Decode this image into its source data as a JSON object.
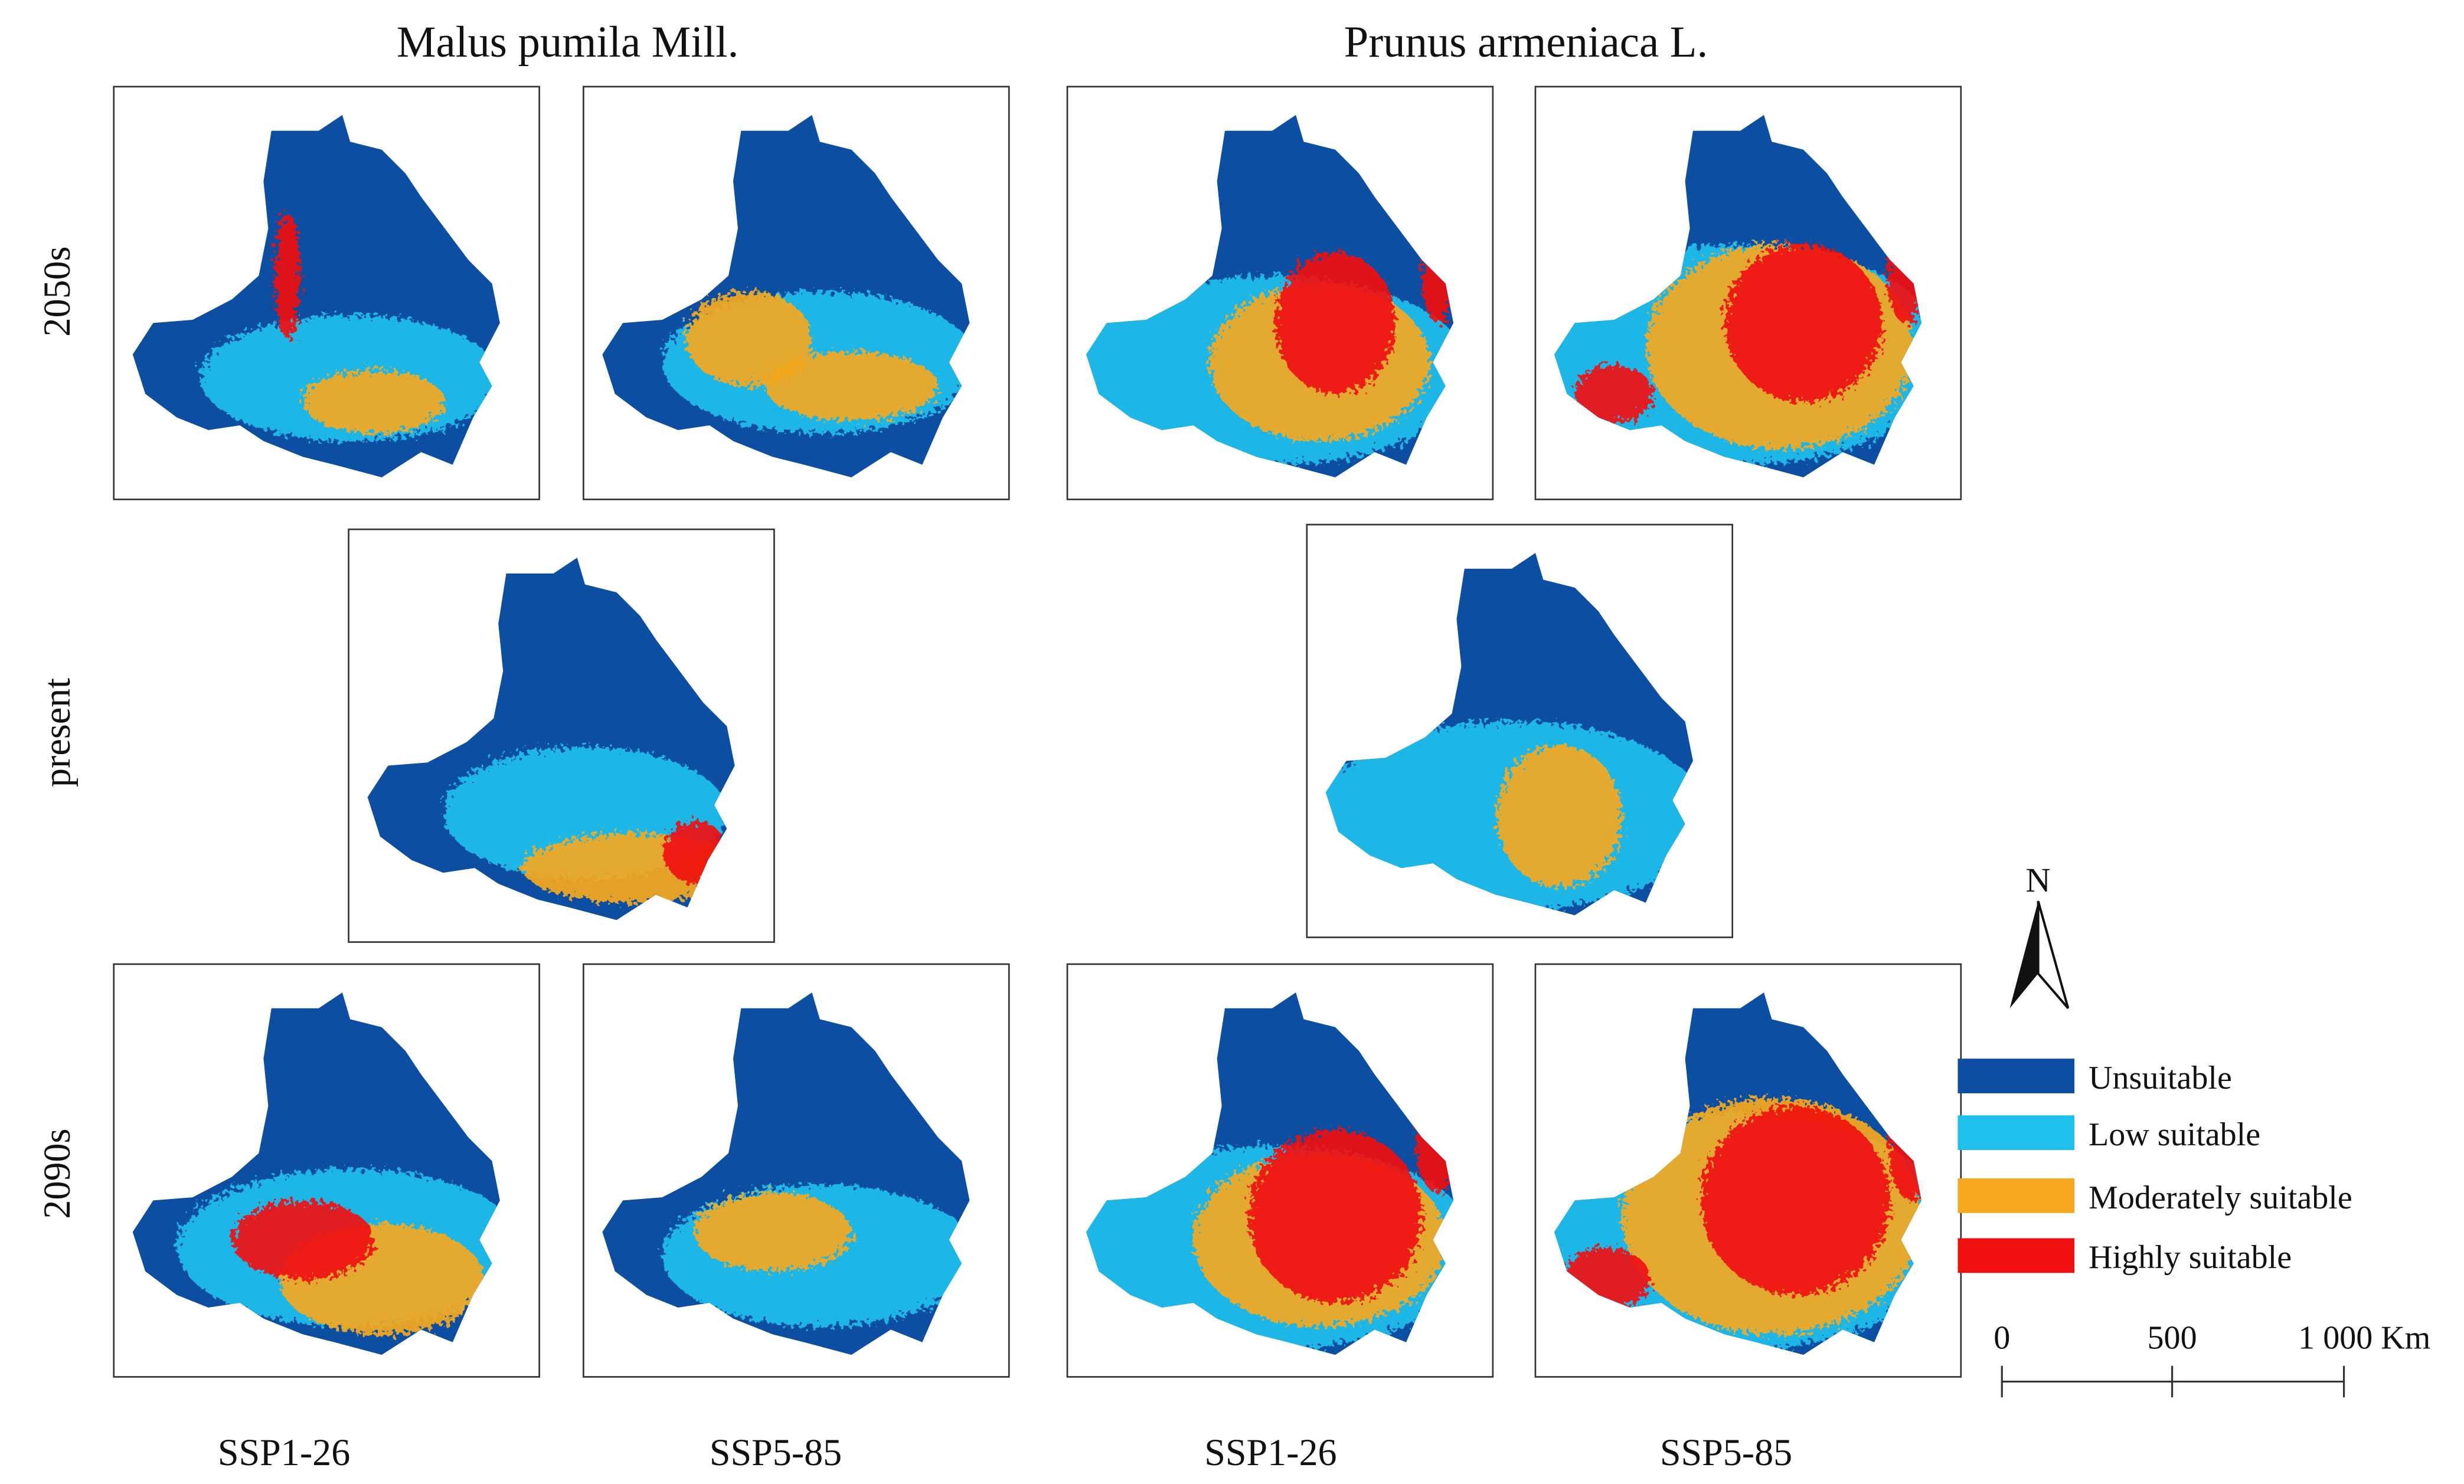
{
  "columns": [
    "Malus pumila Mill.",
    "Prunus armeniaca L."
  ],
  "rows": [
    "2050s",
    "present",
    "2090s"
  ],
  "scenarios": [
    "SSP1-26",
    "SSP5-85",
    "SSP1-26",
    "SSP5-85"
  ],
  "legend": [
    {
      "label": "Unsuitable",
      "color": "#0b4ea2"
    },
    {
      "label": "Low suitable",
      "color": "#1ec0ec"
    },
    {
      "label": "Moderately suitable",
      "color": "#f5a81e"
    },
    {
      "label": "Highly suitable",
      "color": "#f01010"
    }
  ],
  "north": "N",
  "scale_bar": {
    "ticks": [
      "0",
      "500",
      "1 000 Km"
    ]
  }
}
